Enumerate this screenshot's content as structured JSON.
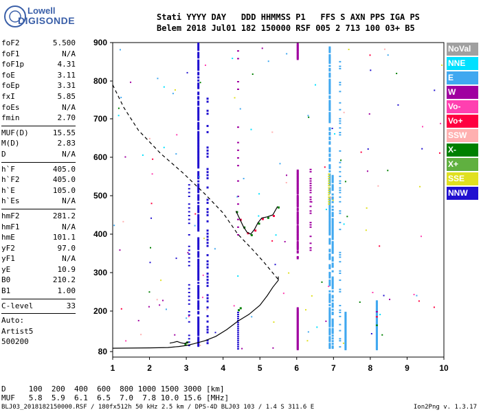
{
  "logo": {
    "line1": "Lowell",
    "line2": "DIGISONDE"
  },
  "header": {
    "line1": "Stati YYYY DAY   DDD HHMMSS P1   FFS S AXN PPS IGA PS",
    "line2": "Belem 2018 Jul01 182 150000 RSF 005 2 713 100 03+ B5"
  },
  "params_group1": [
    {
      "k": "foF2",
      "v": "5.500"
    },
    {
      "k": "foF1",
      "v": "N/A"
    },
    {
      "k": "foF1p",
      "v": "4.31"
    },
    {
      "k": "foE",
      "v": "3.11"
    },
    {
      "k": "foEp",
      "v": "3.31"
    },
    {
      "k": "fxI",
      "v": "5.85"
    },
    {
      "k": "foEs",
      "v": "N/A"
    },
    {
      "k": "fmin",
      "v": "2.70"
    }
  ],
  "params_group2": [
    {
      "k": "MUF(D)",
      "v": "15.55"
    },
    {
      "k": "M(D)",
      "v": "2.83"
    },
    {
      "k": "D",
      "v": "N/A"
    }
  ],
  "params_group3": [
    {
      "k": "h`F",
      "v": "405.0"
    },
    {
      "k": "h`F2",
      "v": "405.0"
    },
    {
      "k": "h`E",
      "v": "105.0"
    },
    {
      "k": "h`Es",
      "v": "N/A"
    }
  ],
  "params_group4": [
    {
      "k": "hmF2",
      "v": "281.2"
    },
    {
      "k": "hmF1",
      "v": "N/A"
    },
    {
      "k": "hmE",
      "v": "101.1"
    },
    {
      "k": "yF2",
      "v": "97.0"
    },
    {
      "k": "yF1",
      "v": "N/A"
    },
    {
      "k": "yE",
      "v": "10.9"
    },
    {
      "k": "B0",
      "v": "210.2"
    },
    {
      "k": "B1",
      "v": "1.00"
    }
  ],
  "params_group5": [
    {
      "k": "C-level",
      "v": "33"
    }
  ],
  "auto": {
    "l1": "Auto:",
    "l2": "Artist5",
    "l3": "500200"
  },
  "legend": [
    {
      "label": "NoVal",
      "color": "#a0a0a0"
    },
    {
      "label": "NNE",
      "color": "#00e0ff"
    },
    {
      "label": "E",
      "color": "#40a8f0"
    },
    {
      "label": "W",
      "color": "#a000a0"
    },
    {
      "label": "Vo-",
      "color": "#ff40b0"
    },
    {
      "label": "Vo+",
      "color": "#ff0040"
    },
    {
      "label": "SSW",
      "color": "#ffb0b0"
    },
    {
      "label": "X-",
      "color": "#008000"
    },
    {
      "label": "X+",
      "color": "#60b040"
    },
    {
      "label": "SSE",
      "color": "#e0e020"
    },
    {
      "label": "NNW",
      "color": "#2010d0"
    }
  ],
  "footer": {
    "d_line": "D     100  200  400  600  800 1000 1500 3000 [km]",
    "muf_line": "MUF   5.8  5.9  6.1  6.5  7.0  7.8 10.0 15.6 [MHz]",
    "file_line": "BLJ03_2018182150000.RSF / 180fx512h 50 kHz 2.5 km / DPS-4D BLJ03 103 / 1.4 S 311.6 E",
    "version": "Ion2Png v. 1.3.17"
  },
  "chart_data": {
    "type": "scatter",
    "title": "",
    "xlabel": "",
    "ylabel": "",
    "xlim": [
      1,
      10
    ],
    "ylim": [
      80,
      900
    ],
    "x_ticks": [
      "1",
      "2",
      "3",
      "4",
      "5",
      "6",
      "7",
      "8",
      "9",
      "10"
    ],
    "y_ticks": [
      "80",
      "200",
      "300",
      "400",
      "500",
      "600",
      "700",
      "800",
      "900"
    ],
    "trace_E_layer": [
      [
        1.0,
        90
      ],
      [
        2.0,
        91
      ],
      [
        2.5,
        92
      ],
      [
        2.8,
        95
      ],
      [
        3.0,
        98
      ],
      [
        3.2,
        103
      ],
      [
        3.5,
        112
      ],
      [
        3.8,
        125
      ],
      [
        4.1,
        145
      ],
      [
        4.4,
        170
      ],
      [
        4.7,
        190
      ],
      [
        5.0,
        215
      ],
      [
        5.2,
        240
      ],
      [
        5.35,
        262
      ],
      [
        5.5,
        280
      ],
      [
        5.5,
        290
      ]
    ],
    "trace_F_layer": [
      [
        4.35,
        460
      ],
      [
        4.45,
        440
      ],
      [
        4.55,
        420
      ],
      [
        4.65,
        405
      ],
      [
        4.75,
        400
      ],
      [
        4.85,
        412
      ],
      [
        4.95,
        430
      ],
      [
        5.05,
        442
      ],
      [
        5.2,
        445
      ],
      [
        5.35,
        450
      ],
      [
        5.48,
        472
      ]
    ],
    "trace_E_trace": [
      [
        2.55,
        105
      ],
      [
        2.65,
        107
      ],
      [
        2.75,
        110
      ],
      [
        2.85,
        106
      ],
      [
        2.95,
        104
      ],
      [
        3.05,
        108
      ]
    ],
    "profile_dashed": [
      [
        1.0,
        790
      ],
      [
        1.3,
        730
      ],
      [
        1.7,
        670
      ],
      [
        2.3,
        610
      ],
      [
        2.9,
        560
      ],
      [
        3.5,
        505
      ],
      [
        4.0,
        455
      ],
      [
        4.4,
        400
      ],
      [
        4.8,
        360
      ],
      [
        5.1,
        328
      ],
      [
        5.3,
        305
      ],
      [
        5.5,
        282
      ]
    ]
  }
}
